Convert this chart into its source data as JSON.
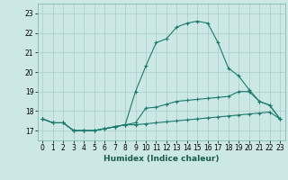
{
  "title": "",
  "xlabel": "Humidex (Indice chaleur)",
  "ylabel": "",
  "background_color": "#cce8e4",
  "grid_color": "#aaccca",
  "line_color": "#1a7a6e",
  "xlim": [
    -0.5,
    23.5
  ],
  "ylim": [
    16.5,
    23.5
  ],
  "xticks": [
    0,
    1,
    2,
    3,
    4,
    5,
    6,
    7,
    8,
    9,
    10,
    11,
    12,
    13,
    14,
    15,
    16,
    17,
    18,
    19,
    20,
    21,
    22,
    23
  ],
  "yticks": [
    17,
    18,
    19,
    20,
    21,
    22,
    23
  ],
  "line1_x": [
    0,
    1,
    2,
    3,
    4,
    5,
    6,
    7,
    8,
    9,
    10,
    11,
    12,
    13,
    14,
    15,
    16,
    17,
    18,
    19,
    20,
    21,
    22,
    23
  ],
  "line1_y": [
    17.6,
    17.4,
    17.4,
    17.0,
    17.0,
    17.0,
    17.1,
    17.2,
    17.3,
    17.3,
    17.35,
    17.4,
    17.45,
    17.5,
    17.55,
    17.6,
    17.65,
    17.7,
    17.75,
    17.8,
    17.85,
    17.9,
    17.95,
    17.6
  ],
  "line2_x": [
    0,
    1,
    2,
    3,
    4,
    5,
    6,
    7,
    8,
    9,
    10,
    11,
    12,
    13,
    14,
    15,
    16,
    17,
    18,
    19,
    20,
    21,
    22,
    23
  ],
  "line2_y": [
    17.6,
    17.4,
    17.4,
    17.0,
    17.0,
    17.0,
    17.1,
    17.2,
    17.3,
    17.4,
    18.15,
    18.2,
    18.35,
    18.5,
    18.55,
    18.6,
    18.65,
    18.7,
    18.75,
    19.0,
    19.0,
    18.5,
    18.3,
    17.6
  ],
  "line3_x": [
    0,
    1,
    2,
    3,
    4,
    5,
    6,
    7,
    8,
    9,
    10,
    11,
    12,
    13,
    14,
    15,
    16,
    17,
    18,
    19,
    20,
    21,
    22,
    23
  ],
  "line3_y": [
    17.6,
    17.4,
    17.4,
    17.0,
    17.0,
    17.0,
    17.1,
    17.2,
    17.3,
    19.0,
    20.3,
    21.5,
    21.7,
    22.3,
    22.5,
    22.6,
    22.5,
    21.5,
    20.2,
    19.8,
    19.1,
    18.5,
    18.3,
    17.6
  ]
}
